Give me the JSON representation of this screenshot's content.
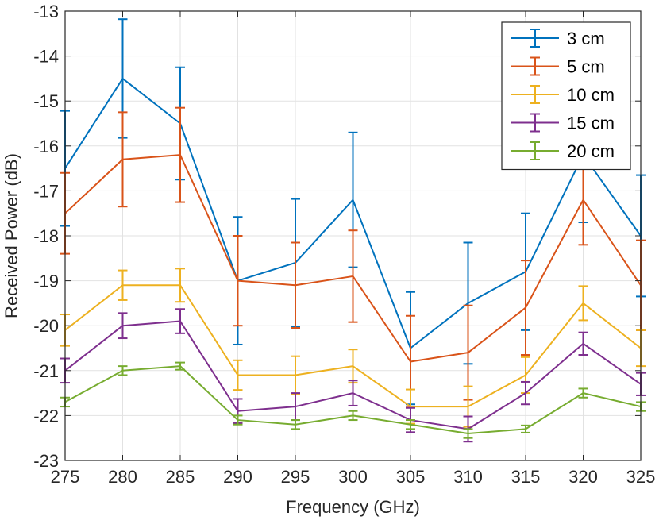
{
  "chart_data": {
    "type": "line",
    "title": "",
    "xlabel": "Frequency (GHz)",
    "ylabel": "Received Power (dB)",
    "x": [
      275,
      280,
      285,
      290,
      295,
      300,
      305,
      310,
      315,
      320,
      325
    ],
    "xlim": [
      275,
      325
    ],
    "ylim": [
      -23,
      -13
    ],
    "xticks": [
      "275",
      "280",
      "285",
      "290",
      "295",
      "300",
      "305",
      "310",
      "315",
      "320",
      "325"
    ],
    "yticks": [
      "-13",
      "-14",
      "-15",
      "-16",
      "-17",
      "-18",
      "-19",
      "-20",
      "-21",
      "-22",
      "-23"
    ],
    "grid": true,
    "legend_position": "top-right",
    "series": [
      {
        "name": "3 cm",
        "color": "#0072BD",
        "values": [
          -16.5,
          -14.5,
          -15.5,
          -19.0,
          -18.6,
          -17.2,
          -20.5,
          -19.5,
          -18.8,
          -16.2,
          -18.0
        ],
        "errors": [
          1.28,
          1.32,
          1.25,
          1.42,
          1.42,
          1.5,
          1.25,
          1.35,
          1.3,
          1.5,
          1.35
        ]
      },
      {
        "name": "5 cm",
        "color": "#D95319",
        "values": [
          -17.5,
          -16.3,
          -16.2,
          -19.0,
          -19.1,
          -18.9,
          -20.8,
          -20.6,
          -19.6,
          -17.2,
          -19.1
        ],
        "errors": [
          0.9,
          1.05,
          1.05,
          1.0,
          0.95,
          1.02,
          1.02,
          1.05,
          1.05,
          1.0,
          1.0
        ]
      },
      {
        "name": "10 cm",
        "color": "#EDB120",
        "values": [
          -20.1,
          -19.1,
          -19.1,
          -21.1,
          -21.1,
          -20.9,
          -21.8,
          -21.8,
          -21.1,
          -19.5,
          -20.5
        ],
        "errors": [
          0.35,
          0.33,
          0.37,
          0.33,
          0.42,
          0.37,
          0.38,
          0.45,
          0.4,
          0.38,
          0.4
        ]
      },
      {
        "name": "15 cm",
        "color": "#7E2F8E",
        "values": [
          -21.0,
          -20.0,
          -19.9,
          -21.9,
          -21.8,
          -21.5,
          -22.1,
          -22.3,
          -21.5,
          -20.4,
          -21.3
        ],
        "errors": [
          0.27,
          0.28,
          0.27,
          0.27,
          0.3,
          0.28,
          0.27,
          0.28,
          0.25,
          0.25,
          0.25
        ]
      },
      {
        "name": "20 cm",
        "color": "#77AC30",
        "values": [
          -21.7,
          -21.0,
          -20.9,
          -22.1,
          -22.2,
          -22.0,
          -22.2,
          -22.4,
          -22.3,
          -21.5,
          -21.8
        ],
        "errors": [
          0.1,
          0.1,
          0.08,
          0.1,
          0.1,
          0.1,
          0.1,
          0.1,
          0.08,
          0.1,
          0.1
        ]
      }
    ]
  }
}
